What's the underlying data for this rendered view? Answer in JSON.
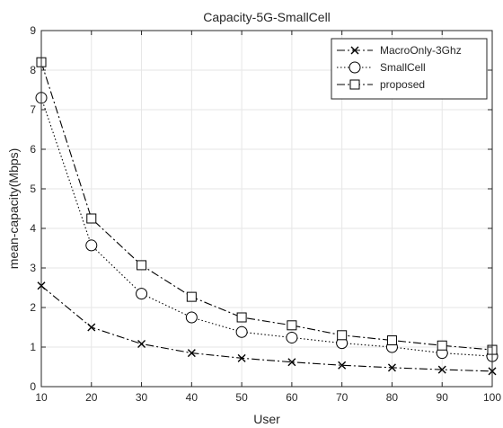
{
  "chart_data": {
    "type": "line",
    "title": "Capacity-5G-SmallCell",
    "xlabel": "User",
    "ylabel": "mean-capacity(Mbps)",
    "x": [
      10,
      20,
      30,
      40,
      50,
      60,
      70,
      80,
      90,
      100
    ],
    "xlim": [
      10,
      100
    ],
    "ylim": [
      0,
      9
    ],
    "xticks": [
      10,
      20,
      30,
      40,
      50,
      60,
      70,
      80,
      90,
      100
    ],
    "yticks": [
      0,
      1,
      2,
      3,
      4,
      5,
      6,
      7,
      8,
      9
    ],
    "grid": true,
    "legend_position": "top-right",
    "series": [
      {
        "name": "MacroOnly-3Ghz",
        "marker": "x",
        "linestyle": "dash-dot",
        "color": "#000000",
        "values": [
          2.55,
          1.5,
          1.08,
          0.85,
          0.72,
          0.62,
          0.54,
          0.48,
          0.43,
          0.39
        ]
      },
      {
        "name": "SmallCell",
        "marker": "circle",
        "linestyle": "dotted",
        "color": "#000000",
        "values": [
          7.3,
          3.57,
          2.35,
          1.75,
          1.38,
          1.24,
          1.1,
          1.0,
          0.85,
          0.77
        ]
      },
      {
        "name": "proposed",
        "marker": "square",
        "linestyle": "dash-dot",
        "color": "#000000",
        "values": [
          8.2,
          4.25,
          3.07,
          2.27,
          1.75,
          1.55,
          1.3,
          1.17,
          1.04,
          0.93
        ]
      }
    ]
  }
}
